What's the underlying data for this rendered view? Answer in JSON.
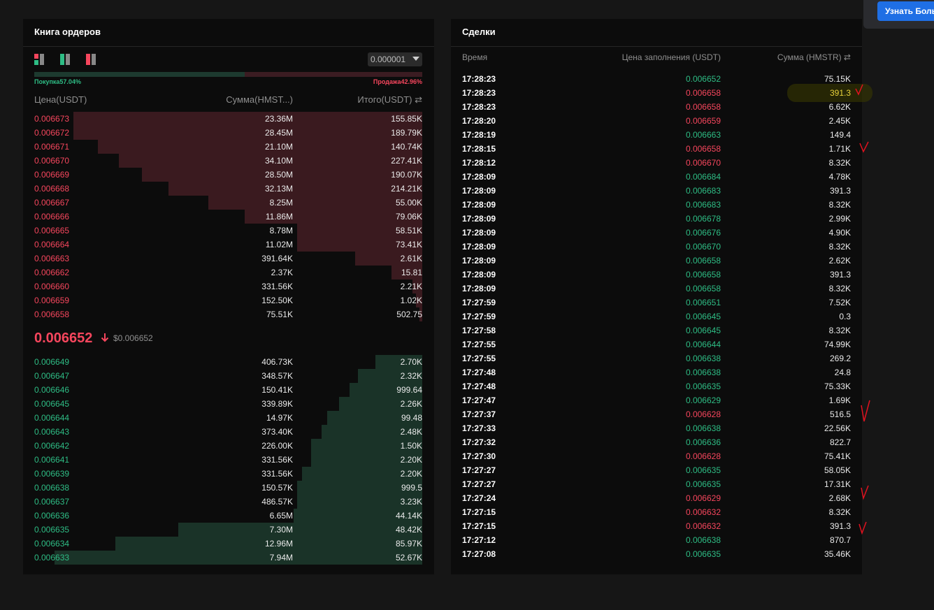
{
  "top_button": "Узнать Боль",
  "order_book": {
    "title": "Книга ордеров",
    "precision": "0.000001",
    "buy_ratio": "Покупка57.04%",
    "sell_ratio": "Продажа42.96%",
    "headers": [
      "Цена(USDT)",
      "Сумма(HMST...)",
      "Итого(USDT) ⇄"
    ],
    "asks": [
      [
        "0.006673",
        "23.36M",
        "155.85K"
      ],
      [
        "0.006672",
        "28.45M",
        "189.79K"
      ],
      [
        "0.006671",
        "21.10M",
        "140.74K"
      ],
      [
        "0.006670",
        "34.10M",
        "227.41K"
      ],
      [
        "0.006669",
        "28.50M",
        "190.07K"
      ],
      [
        "0.006668",
        "32.13M",
        "214.21K"
      ],
      [
        "0.006667",
        "8.25M",
        "55.00K"
      ],
      [
        "0.006666",
        "11.86M",
        "79.06K"
      ],
      [
        "0.006665",
        "8.78M",
        "58.51K"
      ],
      [
        "0.006664",
        "11.02M",
        "73.41K"
      ],
      [
        "0.006663",
        "391.64K",
        "2.61K"
      ],
      [
        "0.006662",
        "2.37K",
        "15.81"
      ],
      [
        "0.006660",
        "331.56K",
        "2.21K"
      ],
      [
        "0.006659",
        "152.50K",
        "1.02K"
      ],
      [
        "0.006658",
        "75.51K",
        "502.75"
      ]
    ],
    "last_price": "0.006652",
    "last_price_usd": "$0.006652",
    "bids": [
      [
        "0.006649",
        "406.73K",
        "2.70K"
      ],
      [
        "0.006647",
        "348.57K",
        "2.32K"
      ],
      [
        "0.006646",
        "150.41K",
        "999.64"
      ],
      [
        "0.006645",
        "339.89K",
        "2.26K"
      ],
      [
        "0.006644",
        "14.97K",
        "99.48"
      ],
      [
        "0.006643",
        "373.40K",
        "2.48K"
      ],
      [
        "0.006642",
        "226.00K",
        "1.50K"
      ],
      [
        "0.006641",
        "331.56K",
        "2.20K"
      ],
      [
        "0.006639",
        "331.56K",
        "2.20K"
      ],
      [
        "0.006638",
        "150.57K",
        "999.5"
      ],
      [
        "0.006637",
        "486.57K",
        "3.23K"
      ],
      [
        "0.006636",
        "6.65M",
        "44.14K"
      ],
      [
        "0.006635",
        "7.30M",
        "48.42K"
      ],
      [
        "0.006634",
        "12.96M",
        "85.97K"
      ],
      [
        "0.006633",
        "7.94M",
        "52.67K"
      ]
    ]
  },
  "trades": {
    "title": "Сделки",
    "headers": [
      "Время",
      "Цена заполнения (USDT)",
      "Сумма (HMSTR) ⇄"
    ],
    "rows": [
      {
        "time": "17:28:23",
        "price": "0.006652",
        "amount": "75.15K",
        "color": "#2ebd85"
      },
      {
        "time": "17:28:23",
        "price": "0.006658",
        "amount": "391.3",
        "color": "#f6465d"
      },
      {
        "time": "17:28:23",
        "price": "0.006658",
        "amount": "6.62K",
        "color": "#f6465d"
      },
      {
        "time": "17:28:20",
        "price": "0.006659",
        "amount": "2.45K",
        "color": "#f6465d"
      },
      {
        "time": "17:28:19",
        "price": "0.006663",
        "amount": "149.4",
        "color": "#2ebd85"
      },
      {
        "time": "17:28:15",
        "price": "0.006658",
        "amount": "1.71K",
        "color": "#f6465d"
      },
      {
        "time": "17:28:12",
        "price": "0.006670",
        "amount": "8.32K",
        "color": "#f6465d"
      },
      {
        "time": "17:28:09",
        "price": "0.006684",
        "amount": "4.78K",
        "color": "#2ebd85"
      },
      {
        "time": "17:28:09",
        "price": "0.006683",
        "amount": "391.3",
        "color": "#2ebd85"
      },
      {
        "time": "17:28:09",
        "price": "0.006683",
        "amount": "8.32K",
        "color": "#2ebd85"
      },
      {
        "time": "17:28:09",
        "price": "0.006678",
        "amount": "2.99K",
        "color": "#2ebd85"
      },
      {
        "time": "17:28:09",
        "price": "0.006676",
        "amount": "4.90K",
        "color": "#2ebd85"
      },
      {
        "time": "17:28:09",
        "price": "0.006670",
        "amount": "8.32K",
        "color": "#2ebd85"
      },
      {
        "time": "17:28:09",
        "price": "0.006658",
        "amount": "2.62K",
        "color": "#2ebd85"
      },
      {
        "time": "17:28:09",
        "price": "0.006658",
        "amount": "391.3",
        "color": "#2ebd85"
      },
      {
        "time": "17:28:09",
        "price": "0.006658",
        "amount": "8.32K",
        "color": "#2ebd85"
      },
      {
        "time": "17:27:59",
        "price": "0.006651",
        "amount": "7.52K",
        "color": "#2ebd85"
      },
      {
        "time": "17:27:59",
        "price": "0.006645",
        "amount": "0.3",
        "color": "#2ebd85"
      },
      {
        "time": "17:27:58",
        "price": "0.006645",
        "amount": "8.32K",
        "color": "#2ebd85"
      },
      {
        "time": "17:27:55",
        "price": "0.006644",
        "amount": "74.99K",
        "color": "#2ebd85"
      },
      {
        "time": "17:27:55",
        "price": "0.006638",
        "amount": "269.2",
        "color": "#2ebd85"
      },
      {
        "time": "17:27:48",
        "price": "0.006638",
        "amount": "24.8",
        "color": "#2ebd85"
      },
      {
        "time": "17:27:48",
        "price": "0.006635",
        "amount": "75.33K",
        "color": "#2ebd85"
      },
      {
        "time": "17:27:47",
        "price": "0.006629",
        "amount": "1.69K",
        "color": "#2ebd85"
      },
      {
        "time": "17:27:37",
        "price": "0.006628",
        "amount": "516.5",
        "color": "#f6465d"
      },
      {
        "time": "17:27:33",
        "price": "0.006638",
        "amount": "22.56K",
        "color": "#2ebd85"
      },
      {
        "time": "17:27:32",
        "price": "0.006636",
        "amount": "822.7",
        "color": "#2ebd85"
      },
      {
        "time": "17:27:30",
        "price": "0.006628",
        "amount": "75.41K",
        "color": "#f6465d"
      },
      {
        "time": "17:27:27",
        "price": "0.006635",
        "amount": "58.05K",
        "color": "#2ebd85"
      },
      {
        "time": "17:27:27",
        "price": "0.006635",
        "amount": "17.31K",
        "color": "#2ebd85"
      },
      {
        "time": "17:27:24",
        "price": "0.006629",
        "amount": "2.68K",
        "color": "#f6465d"
      },
      {
        "time": "17:27:15",
        "price": "0.006632",
        "amount": "8.32K",
        "color": "#f6465d"
      },
      {
        "time": "17:27:15",
        "price": "0.006632",
        "amount": "391.3",
        "color": "#f6465d"
      },
      {
        "time": "17:27:12",
        "price": "0.006638",
        "amount": "870.7",
        "color": "#2ebd85"
      },
      {
        "time": "17:27:08",
        "price": "0.006635",
        "amount": "35.46K",
        "color": "#2ebd85"
      }
    ]
  }
}
